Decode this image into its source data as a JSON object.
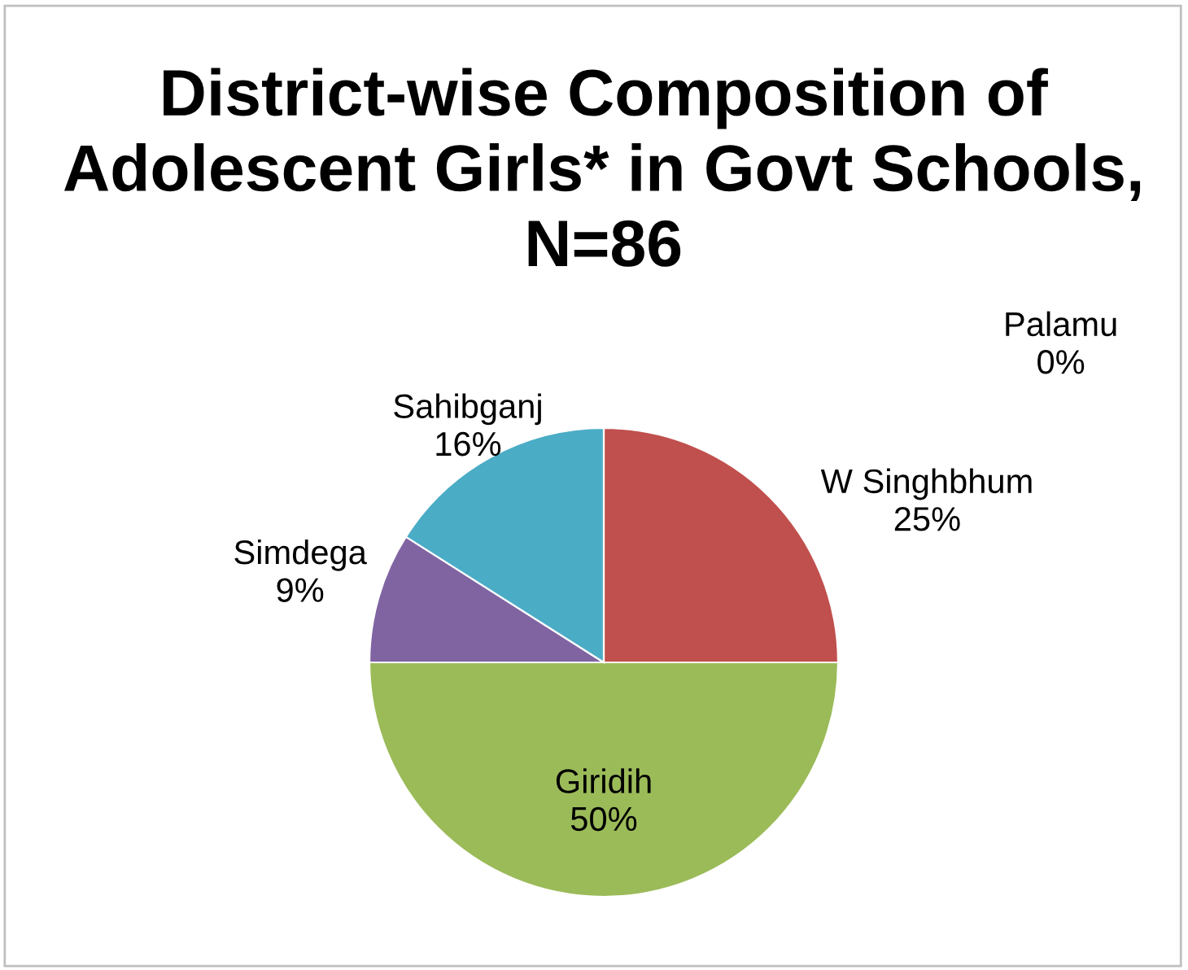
{
  "chart_data": {
    "type": "pie",
    "title": "District-wise Composition of Adolescent Girls* in Govt Schools, N=86",
    "categories": [
      "Palamu",
      "W Singhbhum",
      "Giridih",
      "Simdega",
      "Sahibganj"
    ],
    "values": [
      0,
      25,
      50,
      9,
      16
    ],
    "colors": [
      "#4f81bd",
      "#c0504d",
      "#9bbb59",
      "#8064a2",
      "#4bacc6"
    ],
    "value_labels": [
      "0%",
      "25%",
      "50%",
      "9%",
      "16%"
    ],
    "legend": false
  }
}
